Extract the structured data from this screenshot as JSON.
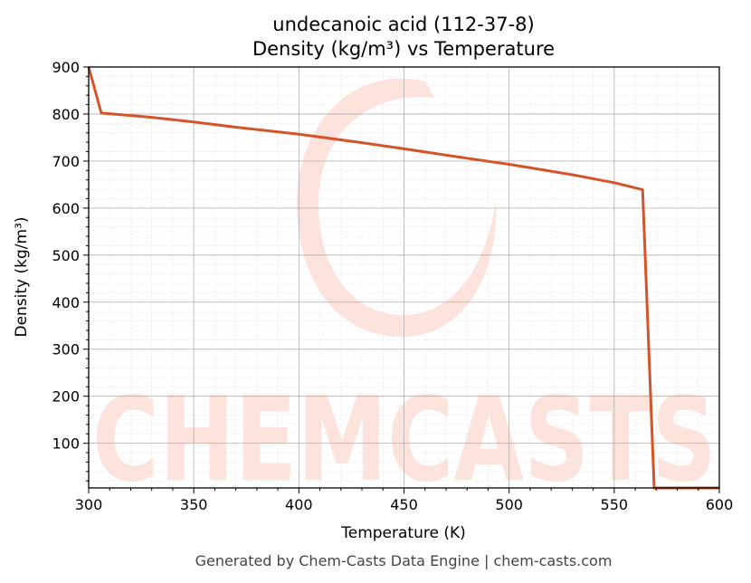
{
  "chart_data": {
    "type": "line",
    "title": "undecanoic acid (112-37-8)",
    "subtitle": "Density (kg/m³) vs Temperature",
    "xlabel": "Temperature (K)",
    "ylabel": "Density (kg/m³)",
    "xlim": [
      300,
      600
    ],
    "ylim": [
      5,
      900
    ],
    "xticks": [
      300,
      350,
      400,
      450,
      500,
      550,
      600
    ],
    "yticks": [
      100,
      200,
      300,
      400,
      500,
      600,
      700,
      800,
      900
    ],
    "grid": true,
    "series": [
      {
        "color": "#d4542a",
        "x": [
          300,
          306,
          330,
          350,
          370,
          400,
          430,
          450,
          480,
          500,
          530,
          550,
          563.5,
          569,
          600
        ],
        "y": [
          900,
          802,
          793,
          783,
          772,
          757,
          739,
          726,
          706,
          693,
          671,
          654,
          639,
          5,
          5
        ]
      }
    ]
  },
  "watermark": {
    "text": "CHEMCASTS",
    "color": "#fde0d8"
  },
  "footer": "Generated by Chem-Casts Data Engine | chem-casts.com"
}
